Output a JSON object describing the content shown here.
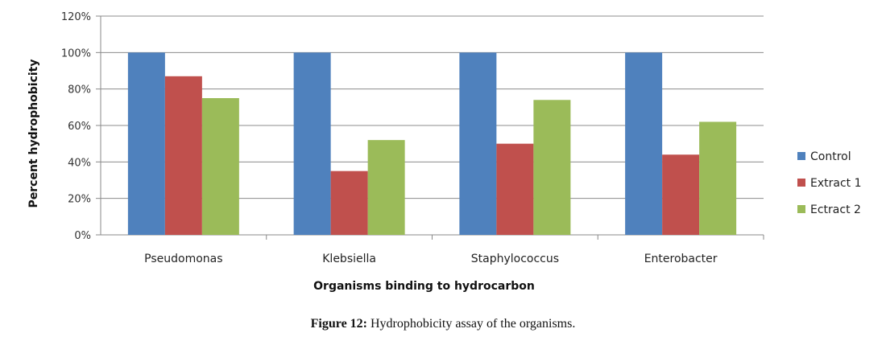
{
  "chart_data": {
    "type": "bar",
    "categories": [
      "Pseudomonas",
      "Klebsiella",
      "Staphylococcus",
      "Enterobacter"
    ],
    "series": [
      {
        "name": "Control",
        "color": "#4F81BD",
        "values": [
          100,
          100,
          100,
          100
        ]
      },
      {
        "name": "Extract 1",
        "color": "#C0504D",
        "values": [
          87,
          35,
          50,
          44
        ]
      },
      {
        "name": "Ectract 2",
        "color": "#9BBB59",
        "values": [
          75,
          52,
          74,
          62
        ]
      }
    ],
    "ylim": [
      0,
      120
    ],
    "yticks": [
      "0%",
      "20%",
      "40%",
      "60%",
      "80%",
      "100%",
      "120%"
    ],
    "ylabel": "Percent hydrophobicity",
    "xlabel": "Organisms  binding to hydrocarbon",
    "grid": true,
    "legend": "right"
  },
  "caption": {
    "label": "Figure 12:",
    "text": " Hydrophobicity assay of the organisms."
  }
}
